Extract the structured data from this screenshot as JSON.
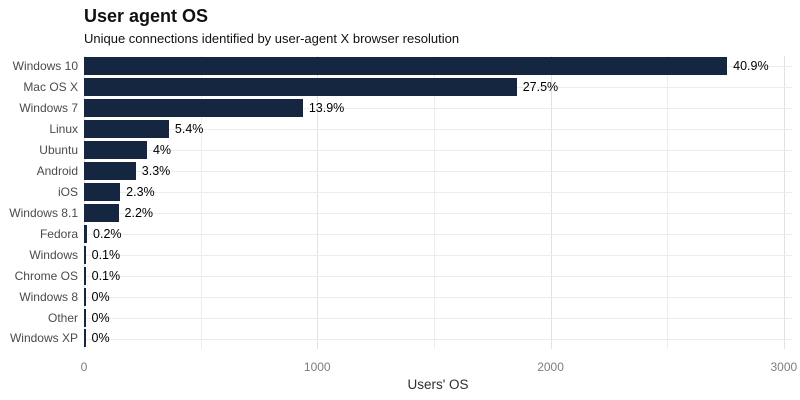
{
  "header": {
    "title": "User agent OS",
    "subtitle": "Unique connections identified by user-agent X browser resolution"
  },
  "chart_data": {
    "type": "bar",
    "orientation": "horizontal",
    "title": "User agent OS",
    "subtitle": "Unique connections identified by user-agent X browser resolution",
    "xlabel": "Users' OS",
    "ylabel": "",
    "categories": [
      "Windows 10",
      "Mac OS X",
      "Windows 7",
      "Linux",
      "Ubuntu",
      "Android",
      "iOS",
      "Windows 8.1",
      "Fedora",
      "Windows",
      "Chrome OS",
      "Windows 8",
      "Other",
      "Windows XP"
    ],
    "values": [
      2757,
      1855,
      938,
      364,
      270,
      222,
      155,
      148,
      13,
      7,
      7,
      3,
      3,
      3
    ],
    "value_labels": [
      "40.9%",
      "27.5%",
      "13.9%",
      "5.4%",
      "4%",
      "3.3%",
      "2.3%",
      "2.2%",
      "0.2%",
      "0.1%",
      "0.1%",
      "0%",
      "0%",
      "0%"
    ],
    "xlim": [
      0,
      3035
    ],
    "xticks": [
      0,
      1000,
      2000,
      3000
    ],
    "xticks_minor": [
      500,
      1500,
      2500
    ],
    "grid": true,
    "legend": "none",
    "bar_color": "#152640",
    "background_color": "#ffffff",
    "major_grid_color": "#e1e1e1",
    "minor_grid_color": "#ededed"
  }
}
